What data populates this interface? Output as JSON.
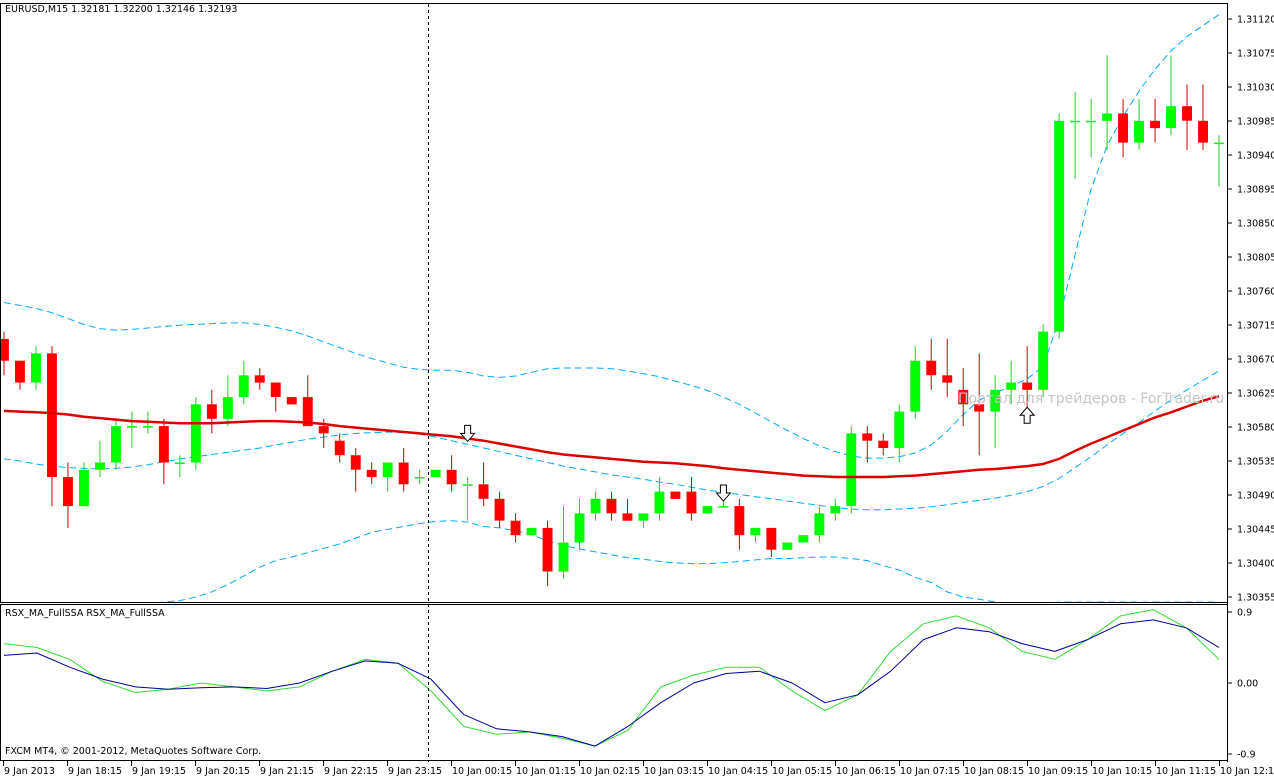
{
  "main_window": {
    "title": "EURUSD,M15  1.32181 1.32200 1.32146 1.32193",
    "watermark": "Портал для трейдеров - ForTrader.ru"
  },
  "indicator_window": {
    "title": "RSX_MA_FullSSA  RSX_MA_FullSSA"
  },
  "footer": {
    "copyright": "FXCM MT4, © 2001-2012, MetaQuotes Software Corp."
  },
  "colors": {
    "bull": "#00ff00",
    "bear": "#ff0000",
    "ma": "#dd0000",
    "bands": "#00aaff",
    "rsx_fast": "#33dd33",
    "rsx_slow": "#000099",
    "grid": "#000000"
  },
  "chart_data": [
    {
      "type": "candlestick",
      "symbol": "EURUSD",
      "timeframe": "M15",
      "ylim": [
        1.30355,
        1.3115
      ],
      "y_ticks": [
        "1.31120",
        "1.31075",
        "1.31030",
        "1.30985",
        "1.30940",
        "1.30895",
        "1.30850",
        "1.30805",
        "1.30760",
        "1.30715",
        "1.30670",
        "1.30625",
        "1.30580",
        "1.30535",
        "1.30490",
        "1.30445",
        "1.30400",
        "1.30355"
      ],
      "x_tick_labels": [
        "9 Jan 2013",
        "9 Jan 18:15",
        "9 Jan 19:15",
        "9 Jan 20:15",
        "9 Jan 21:15",
        "9 Jan 22:15",
        "9 Jan 23:15",
        "10 Jan 00:15",
        "10 Jan 01:15",
        "10 Jan 02:15",
        "10 Jan 03:15",
        "10 Jan 04:15",
        "10 Jan 05:15",
        "10 Jan 06:15",
        "10 Jan 07:15",
        "10 Jan 08:15",
        "10 Jan 09:15",
        "10 Jan 10:15",
        "10 Jan 11:15",
        "10 Jan 12:15"
      ],
      "ohlc": [
        [
          1.3071,
          1.3072,
          1.3066,
          1.3068
        ],
        [
          1.3068,
          1.3068,
          1.3064,
          1.3065
        ],
        [
          1.3065,
          1.307,
          1.3064,
          1.3069
        ],
        [
          1.3069,
          1.307,
          1.3048,
          1.3052
        ],
        [
          1.3052,
          1.3054,
          1.3045,
          1.3048
        ],
        [
          1.3048,
          1.3054,
          1.3048,
          1.3053
        ],
        [
          1.3053,
          1.3057,
          1.3052,
          1.3054
        ],
        [
          1.3054,
          1.306,
          1.3053,
          1.3059
        ],
        [
          1.3059,
          1.3061,
          1.3056,
          1.3059
        ],
        [
          1.3059,
          1.3061,
          1.3058,
          1.3059
        ],
        [
          1.3059,
          1.306,
          1.3051,
          1.3054
        ],
        [
          1.3054,
          1.3055,
          1.3052,
          1.3054
        ],
        [
          1.3054,
          1.3063,
          1.3053,
          1.3062
        ],
        [
          1.3062,
          1.3064,
          1.3058,
          1.306
        ],
        [
          1.306,
          1.3066,
          1.3059,
          1.3063
        ],
        [
          1.3063,
          1.3068,
          1.3062,
          1.3066
        ],
        [
          1.3066,
          1.3067,
          1.3064,
          1.3065
        ],
        [
          1.3065,
          1.3065,
          1.3061,
          1.3063
        ],
        [
          1.3063,
          1.3063,
          1.3062,
          1.3062
        ],
        [
          1.3063,
          1.3066,
          1.3059,
          1.3059
        ],
        [
          1.3059,
          1.306,
          1.3056,
          1.3058
        ],
        [
          1.3057,
          1.3058,
          1.3054,
          1.3055
        ],
        [
          1.3055,
          1.3056,
          1.305,
          1.3053
        ],
        [
          1.3053,
          1.3054,
          1.3051,
          1.3052
        ],
        [
          1.3052,
          1.3054,
          1.305,
          1.3054
        ],
        [
          1.3054,
          1.3056,
          1.305,
          1.3051
        ],
        [
          1.3052,
          1.3053,
          1.3051,
          1.3052
        ],
        [
          1.3052,
          1.3053,
          1.3052,
          1.3053
        ],
        [
          1.3053,
          1.3055,
          1.305,
          1.3051
        ],
        [
          1.3051,
          1.3052,
          1.3046,
          1.3051
        ],
        [
          1.3051,
          1.3054,
          1.3048,
          1.3049
        ],
        [
          1.3049,
          1.305,
          1.3045,
          1.3046
        ],
        [
          1.3046,
          1.3047,
          1.3043,
          1.3044
        ],
        [
          1.3044,
          1.3045,
          1.3044,
          1.3045
        ],
        [
          1.3045,
          1.3046,
          1.3037,
          1.3039
        ],
        [
          1.3039,
          1.3048,
          1.3038,
          1.3043
        ],
        [
          1.3043,
          1.3049,
          1.3042,
          1.3047
        ],
        [
          1.3047,
          1.305,
          1.3046,
          1.3049
        ],
        [
          1.3049,
          1.305,
          1.3046,
          1.3047
        ],
        [
          1.3047,
          1.3049,
          1.3046,
          1.3046
        ],
        [
          1.3046,
          1.3047,
          1.3045,
          1.3047
        ],
        [
          1.3047,
          1.3052,
          1.3046,
          1.305
        ],
        [
          1.305,
          1.305,
          1.3049,
          1.3049
        ],
        [
          1.305,
          1.3052,
          1.3046,
          1.3047
        ],
        [
          1.3047,
          1.3048,
          1.3047,
          1.3048
        ],
        [
          1.3048,
          1.3049,
          1.3048,
          1.3048
        ],
        [
          1.3048,
          1.3049,
          1.3042,
          1.3044
        ],
        [
          1.3044,
          1.3045,
          1.3043,
          1.3045
        ],
        [
          1.3045,
          1.3045,
          1.3041,
          1.3042
        ],
        [
          1.3042,
          1.3043,
          1.3042,
          1.3043
        ],
        [
          1.3043,
          1.3044,
          1.3043,
          1.3044
        ],
        [
          1.3044,
          1.3048,
          1.3043,
          1.3047
        ],
        [
          1.3047,
          1.3049,
          1.3046,
          1.3048
        ],
        [
          1.3048,
          1.3059,
          1.3047,
          1.3058
        ],
        [
          1.3058,
          1.3059,
          1.3054,
          1.3057
        ],
        [
          1.3057,
          1.3058,
          1.3055,
          1.3056
        ],
        [
          1.3056,
          1.3062,
          1.3054,
          1.3061
        ],
        [
          1.3061,
          1.307,
          1.306,
          1.3068
        ],
        [
          1.3068,
          1.3071,
          1.3064,
          1.3066
        ],
        [
          1.3066,
          1.3071,
          1.3063,
          1.3065
        ],
        [
          1.3064,
          1.3067,
          1.3059,
          1.3062
        ],
        [
          1.3062,
          1.3069,
          1.3055,
          1.3061
        ],
        [
          1.3061,
          1.3066,
          1.3056,
          1.3064
        ],
        [
          1.3064,
          1.3068,
          1.3062,
          1.3065
        ],
        [
          1.3065,
          1.307,
          1.3061,
          1.3064
        ],
        [
          1.3064,
          1.3073,
          1.3063,
          1.3072
        ],
        [
          1.3072,
          1.3102,
          1.3071,
          1.3101
        ],
        [
          1.3101,
          1.3105,
          1.3093,
          1.3101
        ],
        [
          1.3101,
          1.3104,
          1.3096,
          1.3101
        ],
        [
          1.3101,
          1.311,
          1.3097,
          1.3102
        ],
        [
          1.3102,
          1.3104,
          1.3096,
          1.3098
        ],
        [
          1.3098,
          1.3104,
          1.3097,
          1.3101
        ],
        [
          1.3101,
          1.3104,
          1.3098,
          1.31
        ],
        [
          1.31,
          1.311,
          1.3099,
          1.3103
        ],
        [
          1.3103,
          1.3106,
          1.3097,
          1.3101
        ],
        [
          1.3101,
          1.3106,
          1.3097,
          1.3098
        ],
        [
          1.3098,
          1.3099,
          1.3092,
          1.3098
        ]
      ],
      "moving_average": [
        1.30611,
        1.3061,
        1.30609,
        1.30608,
        1.30606,
        1.30603,
        1.30601,
        1.30599,
        1.30597,
        1.30596,
        1.30595,
        1.30594,
        1.30594,
        1.30594,
        1.30595,
        1.30596,
        1.30597,
        1.30597,
        1.30596,
        1.30595,
        1.30593,
        1.3059,
        1.30588,
        1.30586,
        1.30584,
        1.30582,
        1.3058,
        1.30578,
        1.30576,
        1.30573,
        1.3057,
        1.30566,
        1.30562,
        1.30558,
        1.30554,
        1.30551,
        1.30549,
        1.30547,
        1.30545,
        1.30543,
        1.30541,
        1.3054,
        1.30539,
        1.30537,
        1.30535,
        1.30532,
        1.3053,
        1.30528,
        1.30526,
        1.30524,
        1.30522,
        1.30521,
        1.3052,
        1.3052,
        1.3052,
        1.3052,
        1.30521,
        1.30522,
        1.30524,
        1.30526,
        1.30528,
        1.3053,
        1.30531,
        1.30533,
        1.30535,
        1.30538,
        1.30545,
        1.30556,
        1.30566,
        1.30575,
        1.30584,
        1.30593,
        1.30602,
        1.30609,
        1.30617,
        1.30625,
        1.30631
      ],
      "upper_band": [
        1.3076,
        1.30756,
        1.30752,
        1.30746,
        1.30738,
        1.3073,
        1.30724,
        1.30722,
        1.30723,
        1.30725,
        1.30727,
        1.30729,
        1.3073,
        1.30731,
        1.30732,
        1.30732,
        1.3073,
        1.30726,
        1.30721,
        1.30714,
        1.30706,
        1.30698,
        1.3069,
        1.30683,
        1.30677,
        1.30671,
        1.30668,
        1.30667,
        1.30667,
        1.30664,
        1.30659,
        1.30657,
        1.30659,
        1.30664,
        1.30669,
        1.3067,
        1.3067,
        1.3067,
        1.30669,
        1.30666,
        1.30662,
        1.30658,
        1.30652,
        1.30646,
        1.30639,
        1.3063,
        1.3062,
        1.30608,
        1.30596,
        1.30584,
        1.30573,
        1.30563,
        1.30555,
        1.30549,
        1.30546,
        1.30546,
        1.30548,
        1.30553,
        1.30564,
        1.30583,
        1.30606,
        1.30626,
        1.30636,
        1.30645,
        1.30655,
        1.30672,
        1.30736,
        1.30826,
        1.30916,
        1.30976,
        1.31016,
        1.31051,
        1.31081,
        1.31106,
        1.31126,
        1.31141,
        1.31156
      ],
      "mid_band": [
        1.30545,
        1.30542,
        1.30538,
        1.30535,
        1.30533,
        1.30532,
        1.30531,
        1.30532,
        1.30534,
        1.30537,
        1.30541,
        1.30545,
        1.30548,
        1.30551,
        1.30554,
        1.30557,
        1.3056,
        1.30564,
        1.30568,
        1.30572,
        1.30575,
        1.30578,
        1.3058,
        1.30581,
        1.30582,
        1.30581,
        1.30579,
        1.30575,
        1.3057,
        1.30565,
        1.3056,
        1.30555,
        1.3055,
        1.30545,
        1.3054,
        1.30535,
        1.30531,
        1.30527,
        1.30523,
        1.3052,
        1.30517,
        1.30513,
        1.3051,
        1.30506,
        1.30502,
        1.30499,
        1.30496,
        1.30493,
        1.3049,
        1.30487,
        1.30484,
        1.30481,
        1.30478,
        1.30476,
        1.30475,
        1.30475,
        1.30476,
        1.30477,
        1.30479,
        1.30482,
        1.30485,
        1.30488,
        1.30491,
        1.30495,
        1.305,
        1.30507,
        1.30518,
        1.30533,
        1.30548,
        1.30564,
        1.3058,
        1.30595,
        1.30611,
        1.30626,
        1.3064,
        1.30653,
        1.30666
      ],
      "lower_band": [
        1.3033,
        1.30328,
        1.30325,
        1.30324,
        1.30328,
        1.30334,
        1.30338,
        1.3034,
        1.30344,
        1.30346,
        1.30348,
        1.3035,
        1.30355,
        1.30362,
        1.30372,
        1.30384,
        1.30396,
        1.30405,
        1.3041,
        1.30416,
        1.30422,
        1.30428,
        1.30436,
        1.30444,
        1.30448,
        1.30452,
        1.30456,
        1.30459,
        1.3046,
        1.30458,
        1.30452,
        1.3045,
        1.30446,
        1.30441,
        1.30432,
        1.30426,
        1.30421,
        1.30417,
        1.30413,
        1.30409,
        1.30407,
        1.30404,
        1.30402,
        1.30401,
        1.30401,
        1.30402,
        1.30404,
        1.30406,
        1.30408,
        1.30408,
        1.30409,
        1.3041,
        1.3041,
        1.30408,
        1.30405,
        1.30398,
        1.30392,
        1.30382,
        1.30375,
        1.30362,
        1.30355,
        1.30352,
        1.30348,
        1.30345,
        1.30343,
        1.30346,
        1.30348,
        1.30348,
        1.30348,
        1.30348,
        1.30348,
        1.30348,
        1.30348,
        1.30348,
        1.30348,
        1.30348,
        1.30348
      ],
      "arrows": [
        {
          "index": 29,
          "direction": "down",
          "price": 1.3058
        },
        {
          "index": 45,
          "direction": "down",
          "price": 1.30498
        },
        {
          "index": 64,
          "direction": "up",
          "price": 1.30605
        }
      ],
      "cursor_index": 26,
      "grid": false,
      "legend": "none"
    },
    {
      "type": "line",
      "title": "RSX_MA_FullSSA  RSX_MA_FullSSA",
      "ylim": [
        -0.9,
        0.9
      ],
      "y_ticks": [
        "0.9",
        "0.00",
        "-0.9"
      ],
      "series": [
        {
          "values": [
            0.5,
            0.45,
            0.3,
            0.02,
            -0.12,
            -0.08,
            0.0,
            -0.05,
            -0.1,
            -0.05,
            0.15,
            0.3,
            0.25,
            -0.1,
            -0.55,
            -0.65,
            -0.62,
            -0.7,
            -0.8,
            -0.6,
            -0.05,
            0.1,
            0.2,
            0.2,
            -0.1,
            -0.35,
            -0.15,
            0.4,
            0.75,
            0.85,
            0.7,
            0.4,
            0.3,
            0.55,
            0.85,
            0.93,
            0.7,
            0.3
          ]
        },
        {
          "values": [
            0.35,
            0.38,
            0.2,
            0.05,
            -0.05,
            -0.08,
            -0.06,
            -0.05,
            -0.07,
            0.0,
            0.15,
            0.28,
            0.25,
            0.05,
            -0.4,
            -0.58,
            -0.62,
            -0.68,
            -0.8,
            -0.55,
            -0.25,
            0.0,
            0.12,
            0.15,
            0.0,
            -0.25,
            -0.15,
            0.15,
            0.55,
            0.7,
            0.65,
            0.5,
            0.4,
            0.55,
            0.75,
            0.8,
            0.7,
            0.45
          ]
        }
      ],
      "grid": false,
      "legend": "none"
    }
  ]
}
